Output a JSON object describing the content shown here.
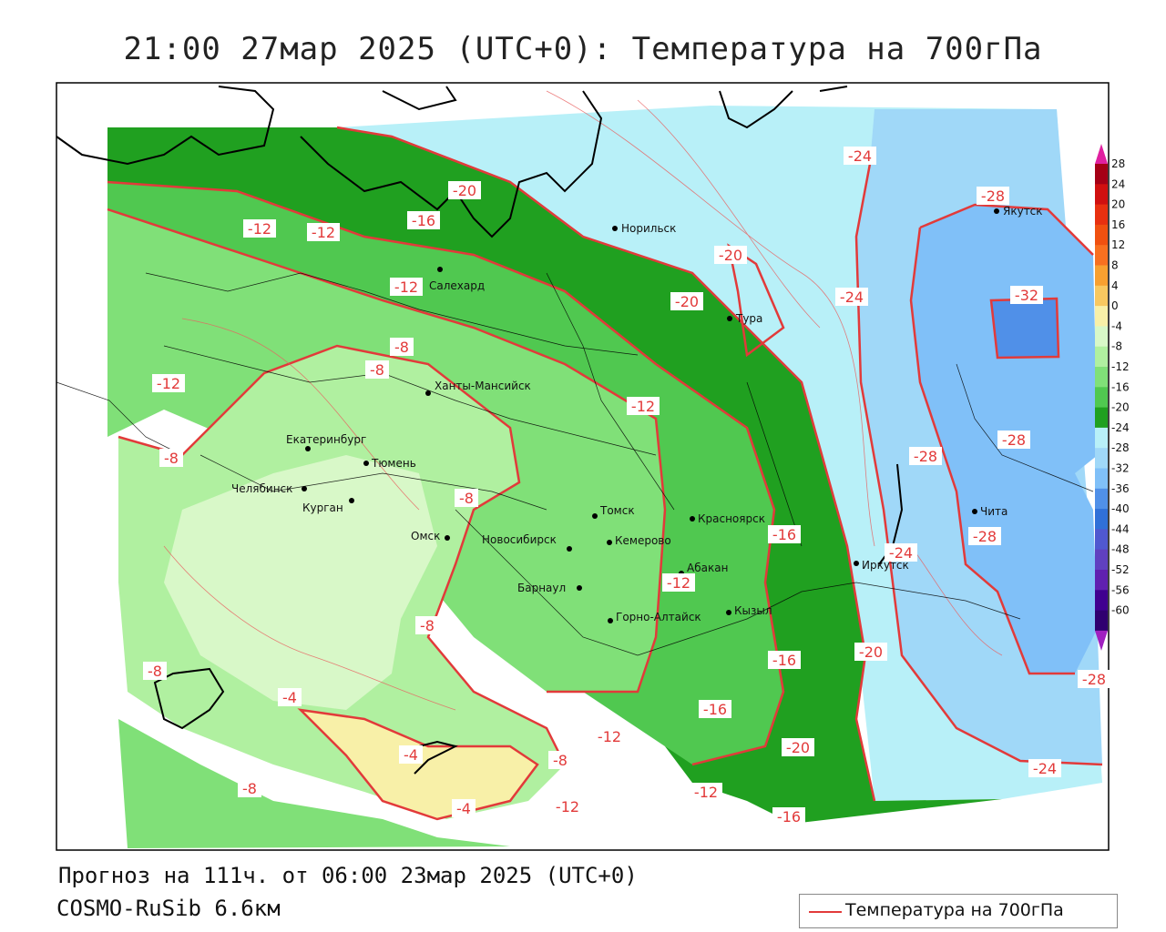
{
  "title": "21:00 27мар 2025 (UTC+0): Температура на 700гПа",
  "forecast_line": "Прогноз на 111ч. от 06:00 23мар 2025 (UTC+0)",
  "model_line": "COSMO-RuSib 6.6км",
  "legend": {
    "label": "Температура на 700гПа",
    "color": "#e23a3a"
  },
  "colorbar": {
    "labels": [
      "28",
      "24",
      "20",
      "16",
      "12",
      "8",
      "4",
      "0",
      "-4",
      "-8",
      "-12",
      "-16",
      "-20",
      "-24",
      "-28",
      "-32",
      "-36",
      "-40",
      "-44",
      "-48",
      "-52",
      "-56",
      "-60"
    ],
    "colors": [
      "#a50016",
      "#d01010",
      "#e83010",
      "#f05010",
      "#f87020",
      "#f8a030",
      "#f8c860",
      "#f8f0a8",
      "#d8f8c8",
      "#b0f0a0",
      "#80e078",
      "#50c850",
      "#20a020",
      "#b8f0f8",
      "#a0d8f8",
      "#80c0f8",
      "#5090e8",
      "#3070d8",
      "#5058d0",
      "#6040c0",
      "#6020b0",
      "#400090",
      "#300070"
    ]
  },
  "cities": [
    {
      "name": "Норильск"
    },
    {
      "name": "Салехард"
    },
    {
      "name": "Тура"
    },
    {
      "name": "Якутск"
    },
    {
      "name": "Ханты-Мансийск"
    },
    {
      "name": "Екатеринбург"
    },
    {
      "name": "Тюмень"
    },
    {
      "name": "Челябинск"
    },
    {
      "name": "Курган"
    },
    {
      "name": "Омск"
    },
    {
      "name": "Новосибирск"
    },
    {
      "name": "Томск"
    },
    {
      "name": "Кемерово"
    },
    {
      "name": "Красноярск"
    },
    {
      "name": "Барнаул"
    },
    {
      "name": "Абакан"
    },
    {
      "name": "Горно-Алтайск"
    },
    {
      "name": "Кызыл"
    },
    {
      "name": "Иркутск"
    },
    {
      "name": "Чита"
    }
  ],
  "isoline_labels": [
    "-24",
    "-28",
    "-20",
    "-16",
    "-12",
    "-12",
    "-12",
    "-20",
    "-24",
    "-32",
    "-20",
    "-8",
    "-8",
    "-12",
    "-12",
    "-28",
    "-8",
    "-28",
    "-8",
    "-16",
    "-24",
    "-28",
    "-12",
    "-8",
    "-20",
    "-16",
    "-4",
    "-16",
    "-28",
    "-8",
    "-20",
    "-4",
    "-12",
    "-8",
    "-24",
    "-8",
    "-12",
    "-12",
    "-4",
    "-16"
  ]
}
